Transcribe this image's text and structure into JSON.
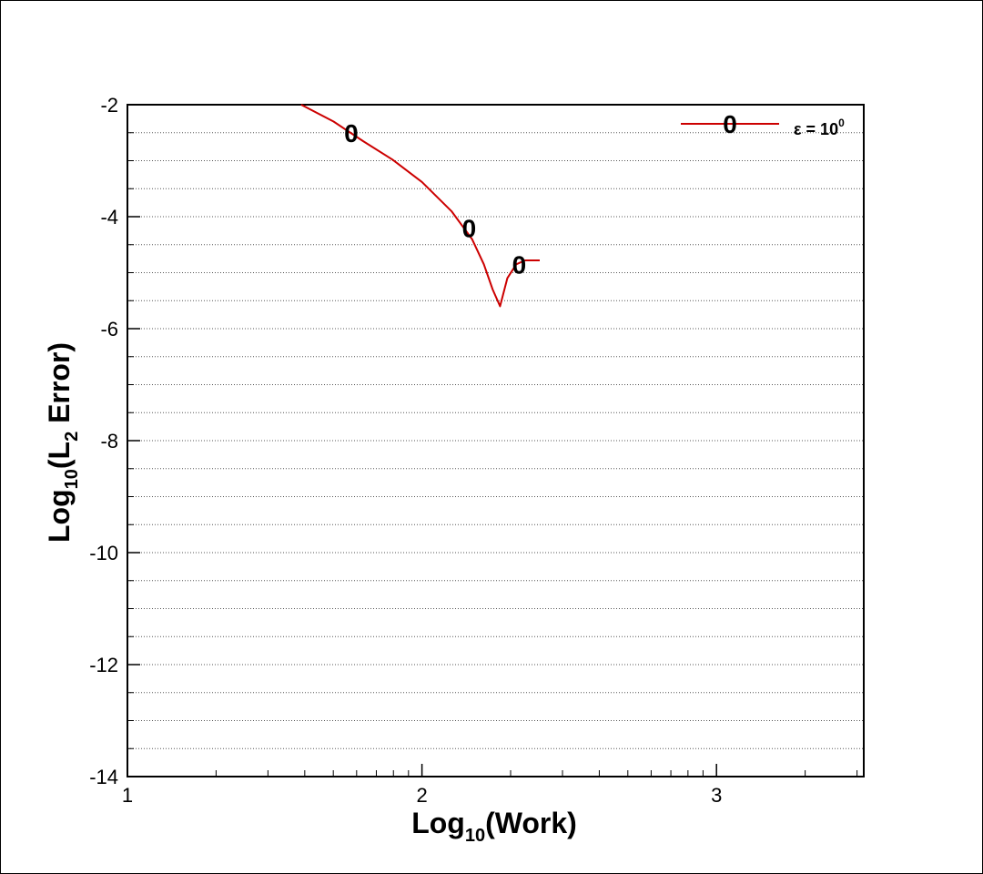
{
  "chart_data": {
    "type": "line",
    "xlabel": {
      "base": "Log",
      "sub": "10",
      "rest": "(Work)"
    },
    "ylabel": {
      "base": "Log",
      "sub": "10",
      "mid": "(L",
      "sub2": "2",
      "rest": " Error)"
    },
    "xlim": [
      1,
      3.5
    ],
    "ylim": [
      -14,
      -2
    ],
    "x_ticks": [
      1,
      2,
      3
    ],
    "x_tick_labels": [
      "1",
      "2",
      "3"
    ],
    "y_ticks": [
      -2,
      -4,
      -6,
      -8,
      -10,
      -12,
      -14
    ],
    "y_tick_labels": [
      "-2",
      "-4",
      "-6",
      "-8",
      "-10",
      "-12",
      "-14"
    ],
    "grid": "horizontal dotted",
    "legend_position": "top-right",
    "series": [
      {
        "name": "ε = 10",
        "name_superscript": "0",
        "color": "#cc0000",
        "marker_symbol": "0",
        "x": [
          1.59,
          1.7,
          1.8,
          1.9,
          2.0,
          2.1,
          2.17,
          2.21,
          2.24,
          2.265,
          2.29,
          2.32,
          2.35,
          2.4
        ],
        "y": [
          -2.0,
          -2.3,
          -2.65,
          -2.98,
          -3.38,
          -3.9,
          -4.4,
          -4.85,
          -5.3,
          -5.6,
          -5.1,
          -4.85,
          -4.78,
          -4.78
        ],
        "marker_points": [
          [
            1.76,
            -2.5
          ],
          [
            2.16,
            -4.2
          ],
          [
            2.33,
            -4.85
          ]
        ]
      }
    ]
  }
}
